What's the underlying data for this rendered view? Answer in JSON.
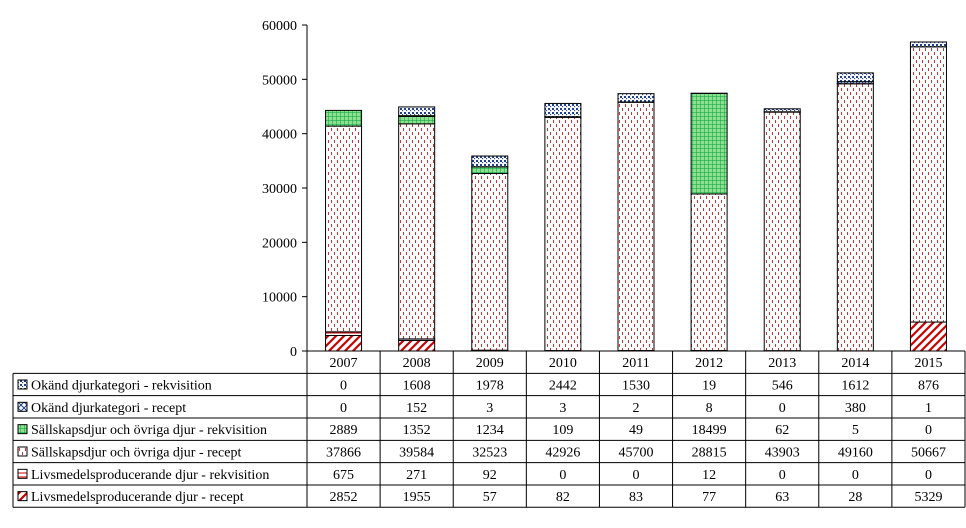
{
  "chart_data": {
    "type": "bar",
    "stacked": true,
    "title": "",
    "xlabel": "",
    "ylabel": "",
    "ylim": [
      0,
      60000
    ],
    "yticks": [
      0,
      10000,
      20000,
      30000,
      40000,
      50000,
      60000
    ],
    "ytick_labels": [
      "0",
      "10000",
      "20000",
      "30000",
      "40000",
      "50000",
      "60000"
    ],
    "legend_placement": "data-table-left",
    "categories": [
      "2007",
      "2008",
      "2009",
      "2010",
      "2011",
      "2012",
      "2013",
      "2014",
      "2015"
    ],
    "series": [
      {
        "name": "Livsmedelsproducerande djur - recept",
        "pattern": "diagonal-hatch",
        "color": "#cc0000",
        "values": [
          2852,
          1955,
          57,
          82,
          83,
          77,
          63,
          28,
          5329
        ],
        "value_labels": [
          "2852",
          "1955",
          "57",
          "82",
          "83",
          "77",
          "63",
          "28",
          "5329"
        ]
      },
      {
        "name": "Livsmedelsproducerande djur - rekvisition",
        "pattern": "horizontal-lines",
        "color": "#cc0000",
        "values": [
          675,
          271,
          92,
          0,
          0,
          12,
          0,
          0,
          0
        ],
        "value_labels": [
          "675",
          "271",
          "92",
          "0",
          "0",
          "12",
          "0",
          "0",
          "0"
        ]
      },
      {
        "name": "Sällskapsdjur och övriga djur - recept",
        "pattern": "dashed-vertical",
        "color": "#cc0000",
        "values": [
          37866,
          39584,
          32523,
          42926,
          45700,
          28815,
          43903,
          49160,
          50667
        ],
        "value_labels": [
          "37866",
          "39584",
          "32523",
          "42926",
          "45700",
          "28815",
          "43903",
          "49160",
          "50667"
        ]
      },
      {
        "name": "Sällskapsdjur och övriga djur - rekvisition",
        "pattern": "green-grid",
        "color": "#00b050",
        "values": [
          2889,
          1352,
          1234,
          109,
          49,
          18499,
          62,
          5,
          0
        ],
        "value_labels": [
          "2889",
          "1352",
          "1234",
          "109",
          "49",
          "18499",
          "62",
          "5",
          "0"
        ]
      },
      {
        "name": "Okänd djurkategori - recept",
        "pattern": "blue-crosshatch",
        "color": "#1f3f8f",
        "values": [
          0,
          152,
          3,
          3,
          2,
          8,
          0,
          380,
          1
        ],
        "value_labels": [
          "0",
          "152",
          "3",
          "3",
          "2",
          "8",
          "0",
          "380",
          "1"
        ]
      },
      {
        "name": "Okänd djurkategori - rekvisition",
        "pattern": "blue-dots",
        "color": "#1f3f8f",
        "values": [
          0,
          1608,
          1978,
          2442,
          1530,
          19,
          546,
          1612,
          876
        ],
        "value_labels": [
          "0",
          "1608",
          "1978",
          "2442",
          "1530",
          "19",
          "546",
          "1612",
          "876"
        ]
      }
    ],
    "table_row_order": [
      5,
      4,
      3,
      2,
      1,
      0
    ]
  }
}
